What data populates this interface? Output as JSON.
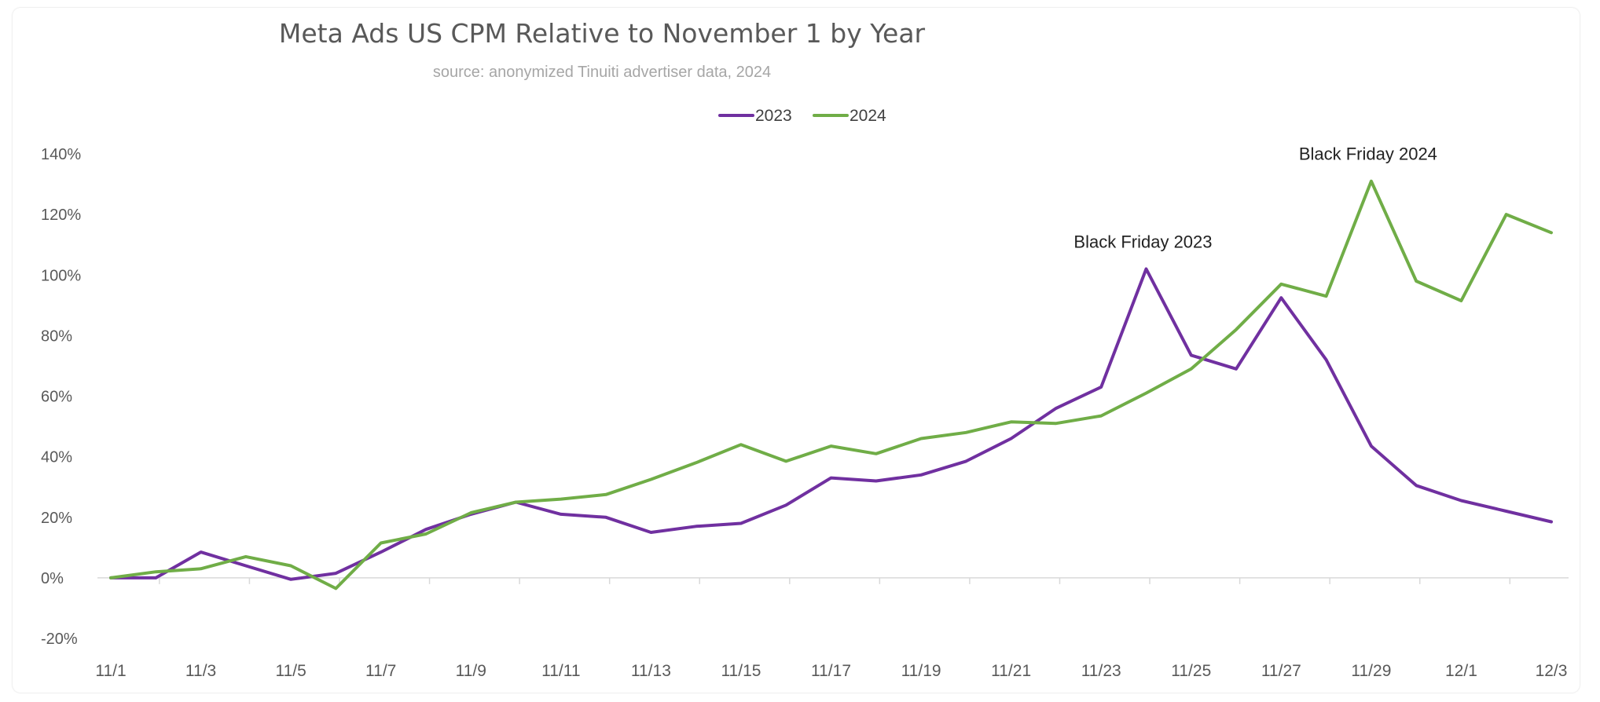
{
  "chart_data": {
    "type": "line",
    "title": "Meta Ads US CPM Relative to November 1 by Year",
    "subtitle": "source: anonymized Tinuiti advertiser data, 2024",
    "xlabel": "",
    "ylabel": "",
    "ylim": [
      -20,
      140
    ],
    "y_ticks": [
      -20,
      0,
      20,
      40,
      60,
      80,
      100,
      120,
      140
    ],
    "y_tick_labels": [
      "-20%",
      "0%",
      "20%",
      "40%",
      "60%",
      "80%",
      "100%",
      "120%",
      "140%"
    ],
    "x": [
      "11/1",
      "11/2",
      "11/3",
      "11/4",
      "11/5",
      "11/6",
      "11/7",
      "11/8",
      "11/9",
      "11/10",
      "11/11",
      "11/12",
      "11/13",
      "11/14",
      "11/15",
      "11/16",
      "11/17",
      "11/18",
      "11/19",
      "11/20",
      "11/21",
      "11/22",
      "11/23",
      "11/24",
      "11/25",
      "11/26",
      "11/27",
      "11/28",
      "11/29",
      "11/30",
      "12/1",
      "12/2",
      "12/3"
    ],
    "x_tick_labels": [
      "11/1",
      "11/3",
      "11/5",
      "11/7",
      "11/9",
      "11/11",
      "11/13",
      "11/15",
      "11/17",
      "11/19",
      "11/21",
      "11/23",
      "11/25",
      "11/27",
      "11/29",
      "12/1",
      "12/3"
    ],
    "grid": false,
    "legend_position": "top-center",
    "series": [
      {
        "name": "2023",
        "color": "#7030a0",
        "values": [
          0,
          0,
          8.5,
          4,
          -0.5,
          1.5,
          8.5,
          16,
          21,
          25,
          21,
          20,
          15,
          17,
          18,
          24,
          33,
          32,
          34,
          38.5,
          46,
          56,
          63,
          102,
          73.5,
          69,
          92.5,
          72,
          43.5,
          30.5,
          25.5,
          22,
          18.5
        ]
      },
      {
        "name": "2024",
        "color": "#70ad47",
        "values": [
          0,
          2,
          3,
          7,
          4,
          -3.5,
          11.5,
          14.5,
          21.5,
          25,
          26,
          27.5,
          32.5,
          38,
          44,
          38.5,
          43.5,
          41,
          46,
          48,
          51.5,
          51,
          53.5,
          61,
          69,
          82,
          97,
          93,
          131,
          98,
          91.5,
          120,
          114
        ]
      }
    ],
    "annotations": [
      {
        "text": "Black Friday 2023",
        "x": "11/24",
        "y": 102
      },
      {
        "text": "Black Friday 2024",
        "x": "11/29",
        "y": 131
      }
    ]
  }
}
